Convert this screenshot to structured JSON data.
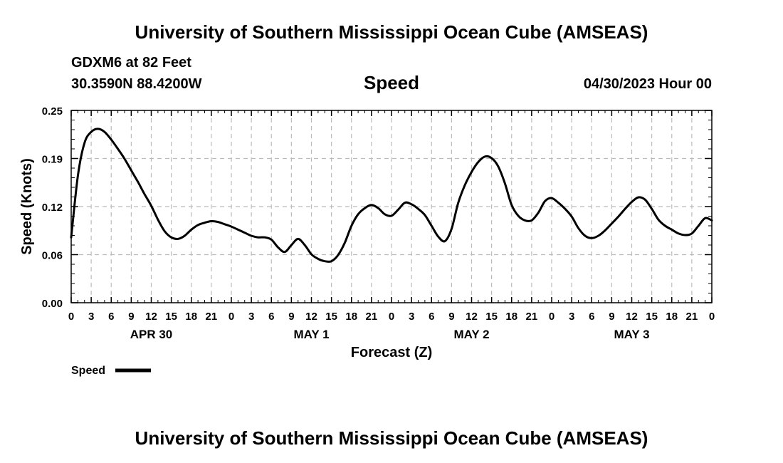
{
  "header": {
    "title": "University of Southern Mississippi Ocean Cube (AMSEAS)",
    "station": "GDXM6 at 82 Feet",
    "coords": "30.3590N  88.4200W",
    "datetime": "04/30/2023 Hour 00"
  },
  "footer": {
    "title": "University of Southern Mississippi Ocean Cube (AMSEAS)"
  },
  "colors": {
    "line": "#000000",
    "grid": "#bbbbbb",
    "axis": "#000000"
  },
  "chart_data": {
    "type": "line",
    "title": "Speed",
    "xlabel": "Forecast (Z)",
    "ylabel": "Speed (Knots)",
    "xlim": [
      0,
      96
    ],
    "ylim": [
      0,
      0.25
    ],
    "grid": true,
    "legend_position": "bottom-left",
    "yticks": [
      {
        "value": 0.0,
        "label": "0.00"
      },
      {
        "value": 0.0625,
        "label": "0.06"
      },
      {
        "value": 0.125,
        "label": "0.12"
      },
      {
        "value": 0.1875,
        "label": "0.19"
      },
      {
        "value": 0.25,
        "label": "0.25"
      }
    ],
    "xticks": [
      {
        "hour": 0,
        "label": "0"
      },
      {
        "hour": 3,
        "label": "3"
      },
      {
        "hour": 6,
        "label": "6"
      },
      {
        "hour": 9,
        "label": "9"
      },
      {
        "hour": 12,
        "label": "12"
      },
      {
        "hour": 15,
        "label": "15"
      },
      {
        "hour": 18,
        "label": "18"
      },
      {
        "hour": 21,
        "label": "21"
      },
      {
        "hour": 24,
        "label": "0"
      },
      {
        "hour": 27,
        "label": "3"
      },
      {
        "hour": 30,
        "label": "6"
      },
      {
        "hour": 33,
        "label": "9"
      },
      {
        "hour": 36,
        "label": "12"
      },
      {
        "hour": 39,
        "label": "15"
      },
      {
        "hour": 42,
        "label": "18"
      },
      {
        "hour": 45,
        "label": "21"
      },
      {
        "hour": 48,
        "label": "0"
      },
      {
        "hour": 51,
        "label": "3"
      },
      {
        "hour": 54,
        "label": "6"
      },
      {
        "hour": 57,
        "label": "9"
      },
      {
        "hour": 60,
        "label": "12"
      },
      {
        "hour": 63,
        "label": "15"
      },
      {
        "hour": 66,
        "label": "18"
      },
      {
        "hour": 69,
        "label": "21"
      },
      {
        "hour": 72,
        "label": "0"
      },
      {
        "hour": 75,
        "label": "3"
      },
      {
        "hour": 78,
        "label": "6"
      },
      {
        "hour": 81,
        "label": "9"
      },
      {
        "hour": 84,
        "label": "12"
      },
      {
        "hour": 87,
        "label": "15"
      },
      {
        "hour": 90,
        "label": "18"
      },
      {
        "hour": 93,
        "label": "21"
      },
      {
        "hour": 96,
        "label": "0"
      }
    ],
    "date_labels": [
      {
        "hour": 12,
        "label": "APR 30"
      },
      {
        "hour": 36,
        "label": "MAY 1"
      },
      {
        "hour": 60,
        "label": "MAY 2"
      },
      {
        "hour": 84,
        "label": "MAY 3"
      }
    ],
    "series": [
      {
        "name": "Speed",
        "x": [
          0,
          1,
          2,
          3,
          4,
          5,
          6,
          7,
          8,
          9,
          10,
          11,
          12,
          13,
          14,
          15,
          16,
          17,
          18,
          19,
          20,
          21,
          22,
          23,
          24,
          25,
          26,
          27,
          28,
          29,
          30,
          31,
          32,
          33,
          34,
          35,
          36,
          37,
          38,
          39,
          40,
          41,
          42,
          43,
          44,
          45,
          46,
          47,
          48,
          49,
          50,
          51,
          52,
          53,
          54,
          55,
          56,
          57,
          58,
          59,
          60,
          61,
          62,
          63,
          64,
          65,
          66,
          67,
          68,
          69,
          70,
          71,
          72,
          73,
          74,
          75,
          76,
          77,
          78,
          79,
          80,
          81,
          82,
          83,
          84,
          85,
          86,
          87,
          88,
          89,
          90,
          91,
          92,
          93,
          94,
          95,
          96
        ],
        "values": [
          0.085,
          0.165,
          0.208,
          0.222,
          0.226,
          0.222,
          0.212,
          0.2,
          0.187,
          0.172,
          0.157,
          0.141,
          0.126,
          0.108,
          0.093,
          0.085,
          0.083,
          0.087,
          0.095,
          0.101,
          0.104,
          0.106,
          0.105,
          0.102,
          0.099,
          0.095,
          0.091,
          0.087,
          0.085,
          0.085,
          0.082,
          0.072,
          0.066,
          0.075,
          0.083,
          0.075,
          0.063,
          0.057,
          0.054,
          0.054,
          0.062,
          0.078,
          0.1,
          0.115,
          0.123,
          0.127,
          0.123,
          0.115,
          0.113,
          0.121,
          0.13,
          0.128,
          0.122,
          0.114,
          0.1,
          0.086,
          0.08,
          0.096,
          0.13,
          0.153,
          0.17,
          0.183,
          0.19,
          0.188,
          0.177,
          0.155,
          0.127,
          0.113,
          0.107,
          0.107,
          0.117,
          0.132,
          0.136,
          0.13,
          0.122,
          0.112,
          0.097,
          0.087,
          0.084,
          0.087,
          0.094,
          0.103,
          0.112,
          0.122,
          0.131,
          0.137,
          0.134,
          0.122,
          0.108,
          0.1,
          0.095,
          0.09,
          0.088,
          0.09,
          0.1,
          0.11,
          0.107
        ]
      }
    ]
  }
}
